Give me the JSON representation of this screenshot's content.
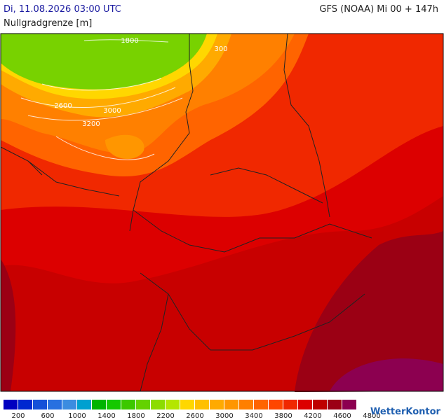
{
  "header": {
    "datetime": "Di, 11.08.2026 03:00 UTC",
    "model": "GFS (NOAA) Mi 00 + 147h",
    "parameter": "Nullgradgrenze [m]"
  },
  "map": {
    "contour_labels": [
      "1800",
      "2600",
      "3000",
      "3200",
      "300"
    ]
  },
  "legend": {
    "colors": [
      "#0000c0",
      "#0028d0",
      "#1450d8",
      "#2870e0",
      "#3c8ce0",
      "#00a0d0",
      "#00b400",
      "#14c800",
      "#3cc800",
      "#64d200",
      "#8cdc00",
      "#b4e600",
      "#ffd700",
      "#ffc000",
      "#ffaa00",
      "#ff9600",
      "#ff7f00",
      "#ff6400",
      "#ff4600",
      "#f02800",
      "#dc0000",
      "#be0000",
      "#9b0014",
      "#8c0050"
    ],
    "labels": [
      200,
      600,
      1000,
      1400,
      1800,
      2200,
      2600,
      3000,
      3400,
      3800,
      4200,
      4600,
      4800
    ]
  },
  "logo": "WetterKontor"
}
